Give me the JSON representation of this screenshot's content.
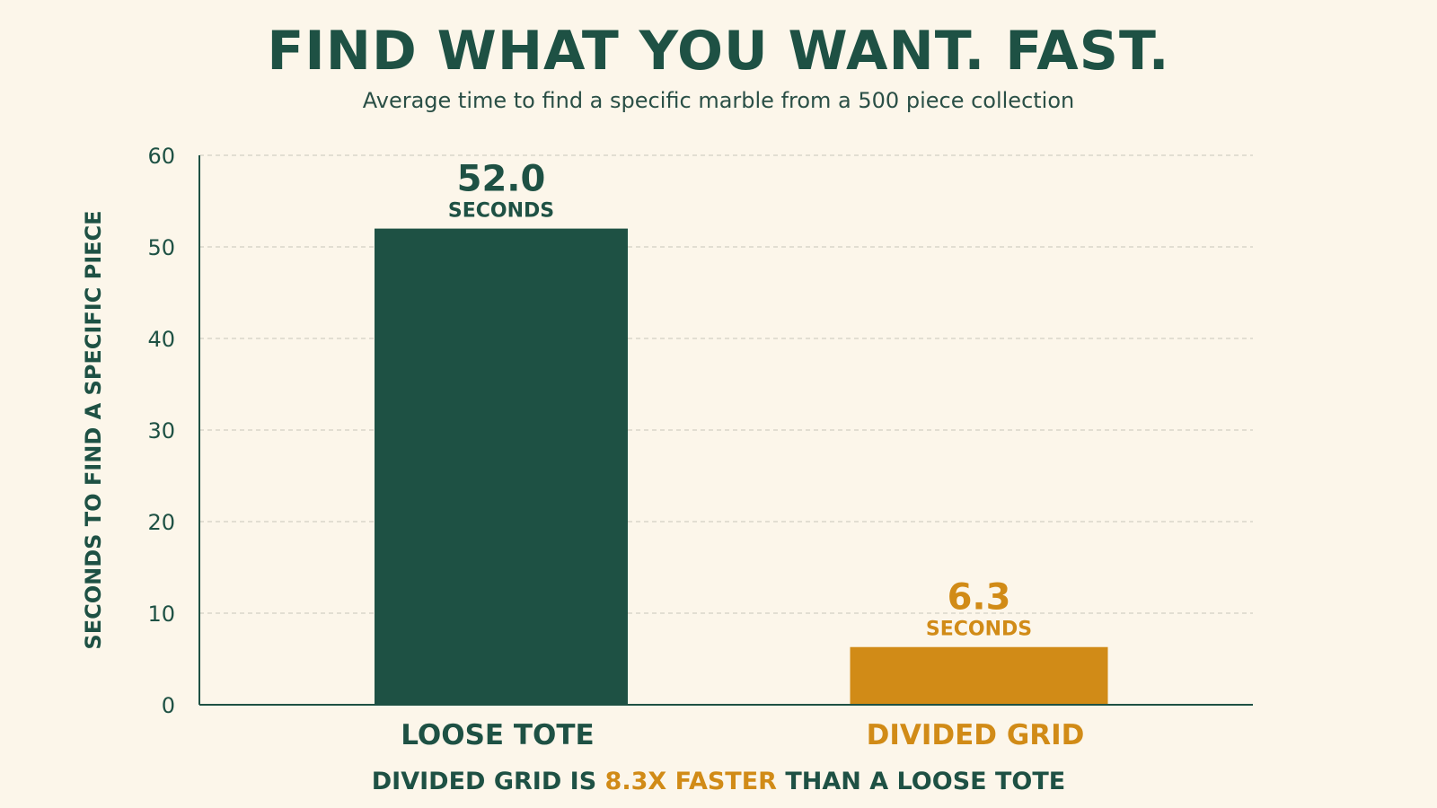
{
  "title": "FIND WHAT YOU WANT. FAST.",
  "subtitle": "Average time to find a specific marble from a 500 piece collection",
  "footer": {
    "prefix": "DIVIDED GRID IS ",
    "highlight": "8.3X FASTER",
    "suffix": " THAN A LOOSE TOTE"
  },
  "colors": {
    "primary": "#1e5144",
    "accent": "#d18b17",
    "background": "#fcf6ea",
    "grid": "#c9c5bb"
  },
  "chart_data": {
    "type": "bar",
    "categories": [
      "LOOSE TOTE",
      "DIVIDED GRID"
    ],
    "values": [
      52.0,
      6.3
    ],
    "value_labels": [
      "52.0",
      "6.3"
    ],
    "unit_label": "SECONDS",
    "bar_colors": [
      "#1e5144",
      "#d18b17"
    ],
    "ylabel": "SECONDS TO FIND A SPECIFIC PIECE",
    "ylim": [
      0,
      60
    ],
    "yticks": [
      0,
      10,
      20,
      30,
      40,
      50,
      60
    ],
    "grid": true
  }
}
